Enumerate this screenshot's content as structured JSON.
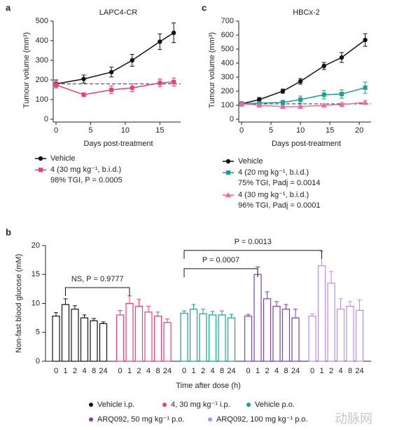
{
  "chart_data": [
    {
      "type": "line",
      "panel_label": "a",
      "title": "LAPC4-CR",
      "xlabel": "Days post-treatment",
      "ylabel": "Tumour volume (mm³)",
      "x": [
        0,
        4,
        8,
        11,
        15,
        17
      ],
      "xlim": [
        0,
        18
      ],
      "xticks": [
        0,
        5,
        10,
        15
      ],
      "ylim": [
        0,
        500
      ],
      "yticks": [
        0,
        100,
        200,
        300,
        400,
        500
      ],
      "baseline": 180,
      "series": [
        {
          "name": "Vehicle",
          "color": "#111111",
          "marker": "circle",
          "values": [
            180,
            205,
            240,
            300,
            395,
            440
          ],
          "errors": [
            20,
            20,
            25,
            30,
            40,
            50
          ]
        },
        {
          "name": "4 (30 mg kg⁻¹, b.i.d.)",
          "note": "98% TGI, P = 0.0005",
          "color": "#e8407a",
          "marker": "square",
          "values": [
            175,
            125,
            150,
            160,
            185,
            190
          ],
          "errors": [
            15,
            10,
            20,
            20,
            20,
            20
          ]
        }
      ]
    },
    {
      "type": "line",
      "panel_label": "c",
      "title": "HBCx-2",
      "xlabel": "Days post-treatment",
      "ylabel": "Tumour volume (mm³)",
      "x": [
        0,
        3,
        7,
        10,
        14,
        17,
        21
      ],
      "xlim": [
        0,
        22
      ],
      "xticks": [
        0,
        5,
        10,
        15,
        20
      ],
      "ylim": [
        0,
        700
      ],
      "yticks": [
        0,
        100,
        200,
        300,
        400,
        500,
        600,
        700
      ],
      "baseline": 110,
      "series": [
        {
          "name": "Vehicle",
          "color": "#111111",
          "marker": "circle",
          "values": [
            110,
            140,
            200,
            270,
            380,
            440,
            565
          ],
          "errors": [
            15,
            15,
            15,
            20,
            25,
            35,
            45
          ]
        },
        {
          "name": "4 (20 mg kg⁻¹, b.i.d.)",
          "note": "75% TGI, Padj = 0.0014",
          "color": "#1a9e96",
          "marker": "square",
          "values": [
            110,
            115,
            120,
            140,
            175,
            180,
            225
          ],
          "errors": [
            10,
            10,
            15,
            25,
            30,
            30,
            40
          ]
        },
        {
          "name": "4 (30 mg kg⁻¹, b.i.d.)",
          "note": "96% TGI, Padj = 0.0001",
          "color": "#f06a9a",
          "marker": "triangle",
          "values": [
            110,
            100,
            90,
            90,
            100,
            105,
            120
          ],
          "errors": [
            10,
            10,
            10,
            10,
            10,
            15,
            15
          ]
        }
      ]
    },
    {
      "type": "bar",
      "panel_label": "b",
      "xlabel": "Time after dose (h)",
      "ylabel": "Non-fast blood glucose (mM)",
      "categories": [
        "0",
        "1",
        "2",
        "4",
        "8",
        "24"
      ],
      "ylim": [
        0,
        20
      ],
      "yticks": [
        0,
        5,
        10,
        15,
        20
      ],
      "annotations": [
        "NS, P = 0.9777",
        "P = 0.0007",
        "P = 0.0013"
      ],
      "series": [
        {
          "name": "Vehicle i.p.",
          "color": "#111111",
          "values": [
            7.8,
            9.8,
            9.0,
            7.5,
            7.0,
            6.5
          ],
          "errors": [
            0.6,
            1.0,
            0.6,
            0.5,
            0.4,
            0.3
          ]
        },
        {
          "name": "4, 30 mg kg⁻¹ i.p.",
          "color": "#e8407a",
          "values": [
            8.0,
            10.0,
            9.5,
            8.5,
            7.8,
            6.7
          ],
          "errors": [
            0.8,
            1.3,
            1.2,
            1.0,
            0.7,
            0.6
          ]
        },
        {
          "name": "Vehicle p.o.",
          "color": "#1a9e96",
          "values": [
            8.3,
            9.0,
            8.2,
            8.0,
            8.0,
            7.5
          ],
          "errors": [
            0.4,
            0.8,
            0.8,
            0.6,
            0.7,
            0.6
          ]
        },
        {
          "name": "ARQ092, 50 mg kg⁻¹ p.o.",
          "color": "#7b3fa8",
          "values": [
            7.8,
            15.0,
            10.8,
            9.5,
            9.0,
            7.5
          ],
          "errors": [
            0.3,
            1.3,
            1.2,
            0.8,
            0.8,
            1.5
          ]
        },
        {
          "name": "ARQ092, 100 mg kg⁻¹ p.o.",
          "color": "#b98ee0",
          "values": [
            7.8,
            16.5,
            13.5,
            9.0,
            9.5,
            8.8
          ],
          "errors": [
            0.4,
            2.5,
            2.0,
            1.8,
            0.8,
            1.8
          ]
        }
      ]
    }
  ],
  "watermark": "动脉网"
}
